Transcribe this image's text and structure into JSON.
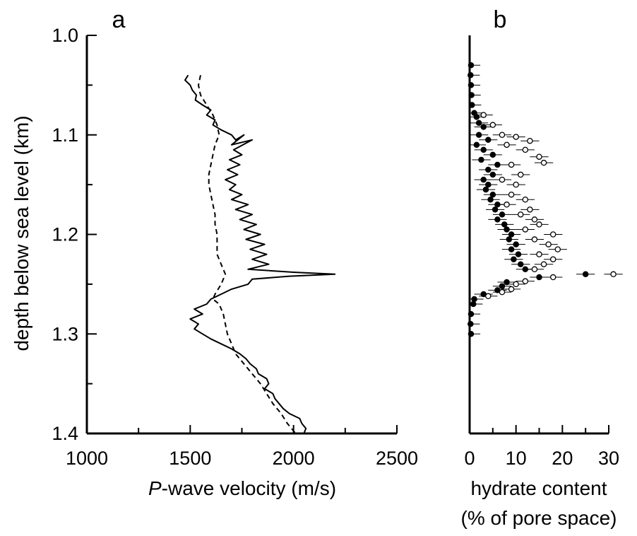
{
  "chart_data": [
    {
      "type": "line",
      "panel_label": "a",
      "xlabel_italic": "P",
      "xlabel_rest": "-wave velocity (m/s)",
      "ylabel": "depth below sea level  (km)",
      "xlim": [
        1000,
        2500
      ],
      "ylim": [
        1.0,
        1.4
      ],
      "y_inverted": true,
      "x_ticks": [
        "1000",
        "1500",
        "2000",
        "2500"
      ],
      "y_ticks": [
        "1.0",
        "1.1",
        "1.2",
        "1.3",
        "1.4"
      ],
      "grid": false,
      "series": [
        {
          "style": "solid",
          "points": [
            [
              1490,
              1.04
            ],
            [
              1475,
              1.045
            ],
            [
              1500,
              1.05
            ],
            [
              1510,
              1.055
            ],
            [
              1530,
              1.06
            ],
            [
              1525,
              1.065
            ],
            [
              1560,
              1.07
            ],
            [
              1600,
              1.075
            ],
            [
              1580,
              1.08
            ],
            [
              1620,
              1.085
            ],
            [
              1610,
              1.09
            ],
            [
              1650,
              1.095
            ],
            [
              1700,
              1.1
            ],
            [
              1720,
              1.105
            ],
            [
              1760,
              1.1
            ],
            [
              1700,
              1.11
            ],
            [
              1800,
              1.105
            ],
            [
              1710,
              1.115
            ],
            [
              1750,
              1.12
            ],
            [
              1690,
              1.125
            ],
            [
              1740,
              1.13
            ],
            [
              1680,
              1.135
            ],
            [
              1730,
              1.14
            ],
            [
              1670,
              1.145
            ],
            [
              1720,
              1.15
            ],
            [
              1690,
              1.155
            ],
            [
              1750,
              1.16
            ],
            [
              1700,
              1.165
            ],
            [
              1780,
              1.17
            ],
            [
              1720,
              1.175
            ],
            [
              1800,
              1.18
            ],
            [
              1740,
              1.185
            ],
            [
              1820,
              1.19
            ],
            [
              1760,
              1.195
            ],
            [
              1840,
              1.2
            ],
            [
              1770,
              1.205
            ],
            [
              1860,
              1.21
            ],
            [
              1790,
              1.215
            ],
            [
              1870,
              1.22
            ],
            [
              1800,
              1.225
            ],
            [
              1880,
              1.23
            ],
            [
              1780,
              1.235
            ],
            [
              2000,
              1.238
            ],
            [
              2200,
              1.24
            ],
            [
              1980,
              1.242
            ],
            [
              1800,
              1.245
            ],
            [
              1780,
              1.25
            ],
            [
              1700,
              1.255
            ],
            [
              1650,
              1.26
            ],
            [
              1600,
              1.265
            ],
            [
              1580,
              1.27
            ],
            [
              1520,
              1.275
            ],
            [
              1560,
              1.28
            ],
            [
              1500,
              1.285
            ],
            [
              1540,
              1.29
            ],
            [
              1520,
              1.295
            ],
            [
              1560,
              1.3
            ],
            [
              1600,
              1.305
            ],
            [
              1650,
              1.31
            ],
            [
              1700,
              1.315
            ],
            [
              1740,
              1.32
            ],
            [
              1770,
              1.325
            ],
            [
              1790,
              1.33
            ],
            [
              1820,
              1.335
            ],
            [
              1830,
              1.34
            ],
            [
              1870,
              1.345
            ],
            [
              1880,
              1.35
            ],
            [
              1860,
              1.355
            ],
            [
              1900,
              1.36
            ],
            [
              1910,
              1.365
            ],
            [
              1930,
              1.37
            ],
            [
              1950,
              1.375
            ],
            [
              1980,
              1.38
            ],
            [
              2030,
              1.385
            ],
            [
              2040,
              1.39
            ],
            [
              2060,
              1.395
            ],
            [
              2050,
              1.4
            ]
          ]
        },
        {
          "style": "dashed",
          "points": [
            [
              1550,
              1.04
            ],
            [
              1540,
              1.05
            ],
            [
              1550,
              1.06
            ],
            [
              1580,
              1.07
            ],
            [
              1610,
              1.08
            ],
            [
              1630,
              1.09
            ],
            [
              1640,
              1.1
            ],
            [
              1620,
              1.11
            ],
            [
              1610,
              1.12
            ],
            [
              1600,
              1.13
            ],
            [
              1590,
              1.14
            ],
            [
              1590,
              1.15
            ],
            [
              1600,
              1.16
            ],
            [
              1610,
              1.17
            ],
            [
              1620,
              1.18
            ],
            [
              1620,
              1.19
            ],
            [
              1630,
              1.2
            ],
            [
              1630,
              1.21
            ],
            [
              1630,
              1.22
            ],
            [
              1650,
              1.23
            ],
            [
              1670,
              1.24
            ],
            [
              1650,
              1.25
            ],
            [
              1620,
              1.26
            ],
            [
              1610,
              1.265
            ],
            [
              1640,
              1.27
            ],
            [
              1660,
              1.28
            ],
            [
              1670,
              1.29
            ],
            [
              1680,
              1.3
            ],
            [
              1700,
              1.31
            ],
            [
              1720,
              1.32
            ],
            [
              1760,
              1.33
            ],
            [
              1800,
              1.34
            ],
            [
              1840,
              1.35
            ],
            [
              1870,
              1.36
            ],
            [
              1900,
              1.37
            ],
            [
              1940,
              1.38
            ],
            [
              1970,
              1.39
            ],
            [
              2010,
              1.4
            ]
          ]
        }
      ]
    },
    {
      "type": "scatter",
      "panel_label": "b",
      "xlabel_line1": "hydrate content",
      "xlabel_line2": "(% of pore space)",
      "xlim": [
        0,
        30
      ],
      "ylim": [
        1.0,
        1.4
      ],
      "y_inverted": true,
      "x_ticks": [
        "0",
        "10",
        "20",
        "30"
      ],
      "grid": false,
      "error_bar_halfwidth": 2,
      "series": [
        {
          "marker": "filled-circle",
          "points": [
            [
              0.3,
              1.03
            ],
            [
              0.2,
              1.04
            ],
            [
              0.3,
              1.05
            ],
            [
              0.4,
              1.06
            ],
            [
              0.5,
              1.07
            ],
            [
              1.0,
              1.078
            ],
            [
              1.5,
              1.082
            ],
            [
              2.0,
              1.088
            ],
            [
              3.0,
              1.092
            ],
            [
              2.0,
              1.1
            ],
            [
              4.0,
              1.105
            ],
            [
              1.5,
              1.11
            ],
            [
              3.0,
              1.115
            ],
            [
              5.0,
              1.12
            ],
            [
              2.5,
              1.125
            ],
            [
              6.0,
              1.13
            ],
            [
              4.0,
              1.135
            ],
            [
              5.0,
              1.14
            ],
            [
              3.0,
              1.145
            ],
            [
              4.0,
              1.15
            ],
            [
              3.5,
              1.155
            ],
            [
              5.0,
              1.16
            ],
            [
              4.5,
              1.165
            ],
            [
              6.0,
              1.17
            ],
            [
              5.5,
              1.175
            ],
            [
              7.0,
              1.18
            ],
            [
              6.0,
              1.185
            ],
            [
              7.5,
              1.19
            ],
            [
              8.0,
              1.195
            ],
            [
              9.0,
              1.2
            ],
            [
              8.5,
              1.205
            ],
            [
              10.0,
              1.21
            ],
            [
              9.0,
              1.215
            ],
            [
              10.5,
              1.22
            ],
            [
              9.5,
              1.225
            ],
            [
              11.0,
              1.23
            ],
            [
              12.0,
              1.235
            ],
            [
              25.0,
              1.24
            ],
            [
              15.0,
              1.243
            ],
            [
              8.0,
              1.248
            ],
            [
              7.0,
              1.252
            ],
            [
              6.0,
              1.256
            ],
            [
              3.0,
              1.26
            ],
            [
              1.0,
              1.265
            ],
            [
              0.8,
              1.27
            ],
            [
              0.3,
              1.28
            ],
            [
              0.2,
              1.29
            ],
            [
              0.3,
              1.3
            ]
          ]
        },
        {
          "marker": "open-circle",
          "points": [
            [
              3.0,
              1.08
            ],
            [
              5.0,
              1.09
            ],
            [
              7.0,
              1.1
            ],
            [
              10.0,
              1.102
            ],
            [
              13.0,
              1.106
            ],
            [
              8.0,
              1.11
            ],
            [
              12.0,
              1.115
            ],
            [
              15.0,
              1.122
            ],
            [
              16.0,
              1.128
            ],
            [
              9.0,
              1.13
            ],
            [
              11.0,
              1.14
            ],
            [
              7.0,
              1.145
            ],
            [
              10.0,
              1.15
            ],
            [
              9.0,
              1.16
            ],
            [
              12.0,
              1.165
            ],
            [
              8.0,
              1.17
            ],
            [
              13.0,
              1.175
            ],
            [
              11.0,
              1.18
            ],
            [
              14.0,
              1.185
            ],
            [
              15.0,
              1.19
            ],
            [
              12.0,
              1.195
            ],
            [
              18.0,
              1.2
            ],
            [
              14.0,
              1.205
            ],
            [
              17.0,
              1.21
            ],
            [
              19.0,
              1.215
            ],
            [
              15.0,
              1.22
            ],
            [
              18.0,
              1.225
            ],
            [
              16.0,
              1.23
            ],
            [
              14.0,
              1.235
            ],
            [
              31.0,
              1.24
            ],
            [
              18.0,
              1.243
            ],
            [
              12.0,
              1.247
            ],
            [
              10.0,
              1.25
            ],
            [
              9.0,
              1.255
            ],
            [
              7.0,
              1.258
            ],
            [
              4.0,
              1.262
            ]
          ]
        }
      ]
    }
  ]
}
